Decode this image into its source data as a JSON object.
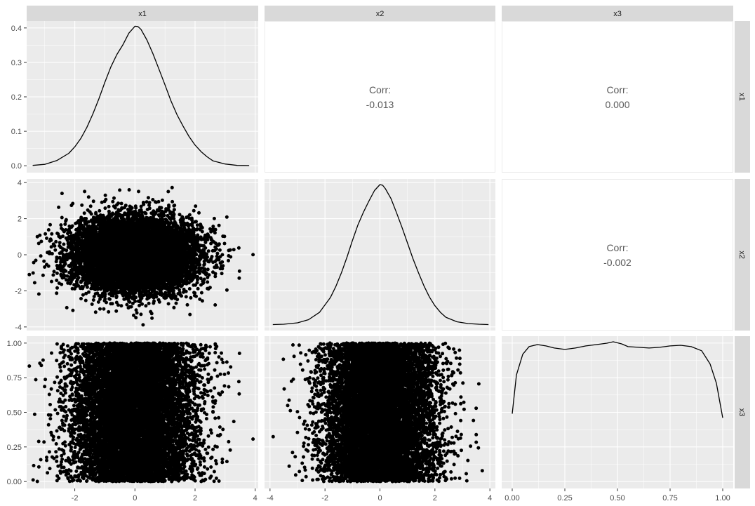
{
  "variables": [
    "x1",
    "x2",
    "x3"
  ],
  "colors": {
    "panel_bg": "#ebebeb",
    "grid_major": "#ffffff",
    "strip_bg": "#d9d9d9",
    "strip_text": "#1a1a1a",
    "point": "#000000",
    "line": "#000000",
    "tick_text": "#4d4d4d",
    "corr_text": "#595959",
    "corr_panel_border": "#ebebeb"
  },
  "chart_data": {
    "type": "scatter",
    "layout": "pairs-matrix",
    "axes": {
      "x1": {
        "range": [
          -3.6,
          4.1
        ],
        "ticks": [
          -2,
          0,
          2,
          4
        ],
        "tick_labels": [
          "-2",
          "0",
          "2",
          "4"
        ]
      },
      "x2": {
        "range": [
          -4.2,
          4.2
        ],
        "ticks": [
          -4,
          -2,
          0,
          2,
          4
        ],
        "tick_labels": [
          "-4",
          "-2",
          "0",
          "2",
          "4"
        ]
      },
      "x3": {
        "range": [
          -0.05,
          1.05
        ],
        "ticks": [
          0,
          0.25,
          0.5,
          0.75,
          1
        ],
        "tick_labels": [
          "0.00",
          "0.25",
          "0.50",
          "0.75",
          "1.00"
        ]
      }
    },
    "density_axis": {
      "range": [
        -0.02,
        0.42
      ],
      "ticks": [
        0,
        0.1,
        0.2,
        0.3,
        0.4
      ],
      "tick_labels": [
        "0.0",
        "0.1",
        "0.2",
        "0.3",
        "0.4"
      ]
    },
    "densities": {
      "x1": {
        "x": [
          -3.4,
          -3.0,
          -2.6,
          -2.2,
          -2.0,
          -1.8,
          -1.6,
          -1.4,
          -1.2,
          -1.0,
          -0.8,
          -0.6,
          -0.4,
          -0.2,
          0.0,
          0.1,
          0.2,
          0.4,
          0.6,
          0.8,
          1.0,
          1.2,
          1.4,
          1.6,
          1.8,
          2.0,
          2.2,
          2.4,
          2.6,
          3.0,
          3.4,
          3.8
        ],
        "y": [
          0.001,
          0.004,
          0.015,
          0.036,
          0.055,
          0.079,
          0.111,
          0.15,
          0.194,
          0.242,
          0.287,
          0.323,
          0.351,
          0.385,
          0.405,
          0.404,
          0.396,
          0.365,
          0.325,
          0.28,
          0.235,
          0.188,
          0.148,
          0.115,
          0.085,
          0.06,
          0.041,
          0.026,
          0.014,
          0.005,
          0.001,
          0.0005
        ]
      },
      "x2": {
        "x": [
          -3.9,
          -3.5,
          -3.0,
          -2.6,
          -2.2,
          -1.8,
          -1.6,
          -1.4,
          -1.2,
          -1.0,
          -0.8,
          -0.6,
          -0.4,
          -0.2,
          0.0,
          0.1,
          0.2,
          0.4,
          0.6,
          0.8,
          1.0,
          1.2,
          1.4,
          1.6,
          1.8,
          2.0,
          2.2,
          2.4,
          2.8,
          3.2,
          3.6,
          3.95
        ],
        "y": [
          0.001,
          0.002,
          0.006,
          0.015,
          0.036,
          0.079,
          0.111,
          0.15,
          0.194,
          0.242,
          0.287,
          0.323,
          0.355,
          0.385,
          0.402,
          0.4,
          0.39,
          0.362,
          0.322,
          0.28,
          0.235,
          0.19,
          0.15,
          0.112,
          0.08,
          0.055,
          0.036,
          0.022,
          0.009,
          0.004,
          0.002,
          0.001
        ]
      },
      "x3": {
        "x": [
          0.0,
          0.02,
          0.05,
          0.08,
          0.12,
          0.16,
          0.2,
          0.25,
          0.3,
          0.35,
          0.4,
          0.45,
          0.48,
          0.52,
          0.55,
          0.6,
          0.65,
          0.7,
          0.75,
          0.8,
          0.85,
          0.9,
          0.94,
          0.97,
          1.0
        ],
        "y": [
          0.5,
          0.78,
          0.93,
          0.985,
          1.0,
          0.99,
          0.975,
          0.965,
          0.975,
          0.99,
          1.0,
          1.01,
          1.02,
          1.005,
          0.985,
          0.98,
          0.975,
          0.98,
          0.99,
          0.995,
          0.985,
          0.955,
          0.86,
          0.72,
          0.47
        ]
      }
    },
    "correlations": [
      {
        "row": "x1",
        "col": "x2",
        "label": "Corr:",
        "value": "-0.013"
      },
      {
        "row": "x1",
        "col": "x3",
        "label": "Corr:",
        "value": "0.000"
      },
      {
        "row": "x2",
        "col": "x3",
        "label": "Corr:",
        "value": "-0.002"
      }
    ],
    "scatter_pairs": [
      {
        "row": "x2",
        "col": "x1"
      },
      {
        "row": "x3",
        "col": "x1"
      },
      {
        "row": "x3",
        "col": "x2"
      }
    ],
    "distributions": {
      "x1": {
        "dist": "normal",
        "mean": 0,
        "sd": 1
      },
      "x2": {
        "dist": "normal",
        "mean": 0,
        "sd": 1
      },
      "x3": {
        "dist": "uniform",
        "min": 0,
        "max": 1
      }
    },
    "n_points": 10000,
    "grid": true
  }
}
